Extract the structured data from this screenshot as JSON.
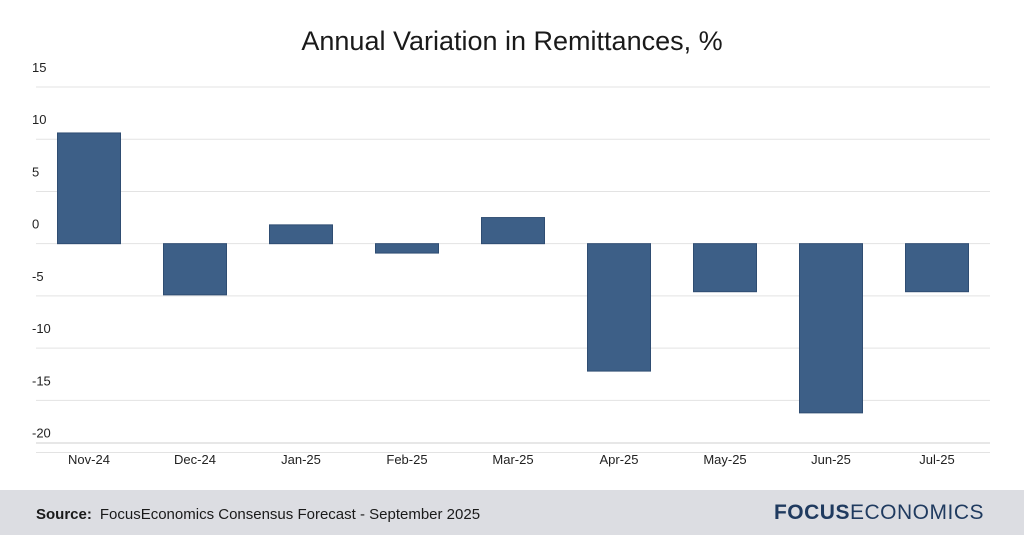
{
  "chart_data": {
    "type": "bar",
    "title": "Annual Variation in Remittances, %",
    "categories": [
      "Nov-24",
      "Dec-24",
      "Jan-25",
      "Feb-25",
      "Mar-25",
      "Apr-25",
      "May-25",
      "Jun-25",
      "Jul-25"
    ],
    "values": [
      10.6,
      -4.9,
      1.8,
      -0.9,
      2.5,
      -12.2,
      -4.6,
      -16.2,
      -4.6
    ],
    "ylim": [
      -21,
      15
    ],
    "yticks": [
      15,
      10,
      5,
      0,
      -5,
      -10,
      -15,
      -20
    ],
    "grid": true,
    "bar_color": "#3d5f87",
    "xlabel": "",
    "ylabel": ""
  },
  "footer": {
    "source_label": "Source:",
    "source_text": "FocusEconomics Consensus Forecast - September 2025",
    "logo_bold": "FOCUS",
    "logo_rest": "ECONOMICS",
    "logo_color": "#1f3a5f"
  }
}
